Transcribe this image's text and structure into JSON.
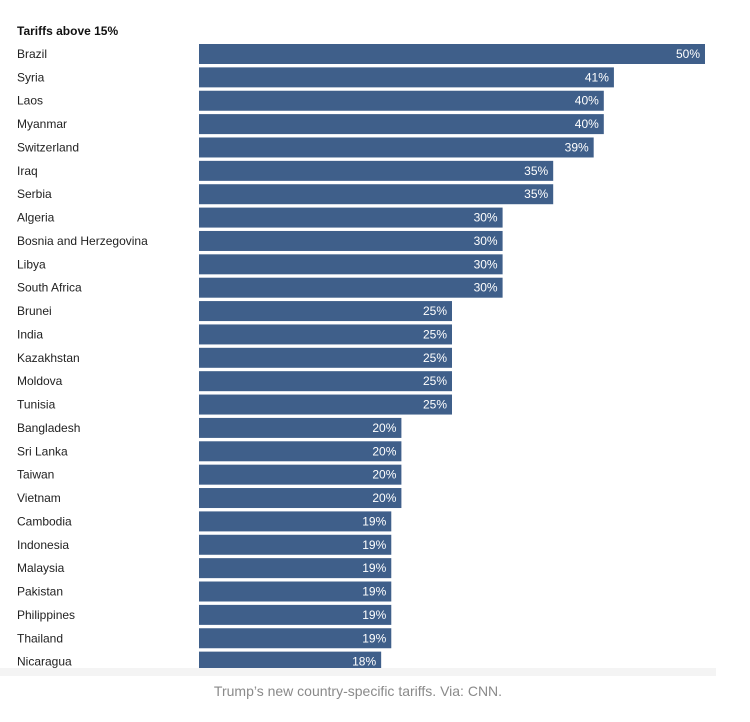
{
  "chart_data": {
    "type": "bar",
    "orientation": "horizontal",
    "title": "Tariffs above 15%",
    "xlabel": "",
    "ylabel": "",
    "xlim": [
      0,
      50
    ],
    "grid": false,
    "value_suffix": "%",
    "bar_color": "#3f5f8a",
    "categories": [
      "Brazil",
      "Syria",
      "Laos",
      "Myanmar",
      "Switzerland",
      "Iraq",
      "Serbia",
      "Algeria",
      "Bosnia and Herzegovina",
      "Libya",
      "South Africa",
      "Brunei",
      "India",
      "Kazakhstan",
      "Moldova",
      "Tunisia",
      "Bangladesh",
      "Sri Lanka",
      "Taiwan",
      "Vietnam",
      "Cambodia",
      "Indonesia",
      "Malaysia",
      "Pakistan",
      "Philippines",
      "Thailand",
      "Nicaragua"
    ],
    "values": [
      50,
      41,
      40,
      40,
      39,
      35,
      35,
      30,
      30,
      30,
      30,
      25,
      25,
      25,
      25,
      25,
      20,
      20,
      20,
      20,
      19,
      19,
      19,
      19,
      19,
      19,
      18
    ]
  },
  "caption": "Trump’s new country-specific tariffs. Via: CNN."
}
